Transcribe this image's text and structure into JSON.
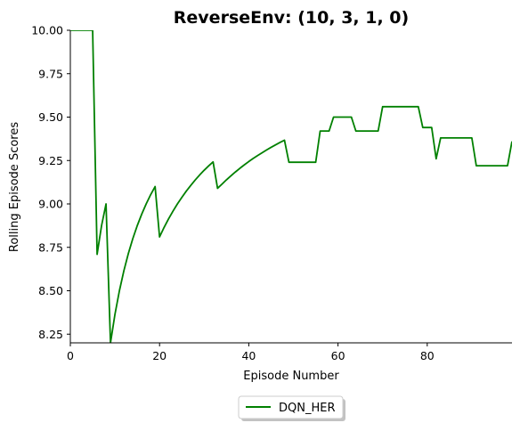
{
  "chart_data": {
    "type": "line",
    "title": "ReverseEnv: (10, 3, 1, 0)",
    "xlabel": "Episode Number",
    "ylabel": "Rolling Episode Scores",
    "xlim": [
      0,
      99
    ],
    "ylim": [
      8.2,
      10.0
    ],
    "x_ticks": [
      0,
      20,
      40,
      60,
      80
    ],
    "y_ticks": [
      8.25,
      8.5,
      8.75,
      9.0,
      9.25,
      9.5,
      9.75,
      10.0
    ],
    "x_tick_labels": [
      "0",
      "20",
      "40",
      "60",
      "80"
    ],
    "y_tick_labels": [
      "8.25",
      "8.50",
      "8.75",
      "9.00",
      "9.25",
      "9.50",
      "9.75",
      "10.00"
    ],
    "grid": false,
    "legend_position": "bottom-center",
    "series": [
      {
        "name": "DQN_HER",
        "color": "#008000",
        "x": [
          0,
          1,
          2,
          3,
          4,
          5,
          6,
          7,
          8,
          9,
          10,
          11,
          12,
          13,
          14,
          15,
          16,
          17,
          18,
          19,
          20,
          21,
          22,
          23,
          24,
          25,
          26,
          27,
          28,
          29,
          30,
          31,
          32,
          33,
          34,
          35,
          36,
          37,
          38,
          39,
          40,
          41,
          42,
          43,
          44,
          45,
          46,
          47,
          48,
          49,
          50,
          51,
          52,
          53,
          54,
          55,
          56,
          57,
          58,
          59,
          60,
          61,
          62,
          63,
          64,
          65,
          66,
          67,
          68,
          69,
          70,
          71,
          72,
          73,
          74,
          75,
          76,
          77,
          78,
          79,
          80,
          81,
          82,
          83,
          84,
          85,
          86,
          87,
          88,
          89,
          90,
          91,
          92,
          93,
          94,
          95,
          96,
          97,
          98,
          99
        ],
        "y": [
          10.0,
          10.0,
          10.0,
          10.0,
          10.0,
          10.0,
          8.71,
          8.875,
          9.0,
          8.2,
          8.364,
          8.5,
          8.615,
          8.714,
          8.8,
          8.875,
          8.941,
          9.0,
          9.053,
          9.1,
          8.81,
          8.864,
          8.913,
          8.958,
          9.0,
          9.038,
          9.074,
          9.107,
          9.138,
          9.167,
          9.194,
          9.219,
          9.242,
          9.09,
          9.114,
          9.139,
          9.162,
          9.184,
          9.205,
          9.225,
          9.244,
          9.262,
          9.279,
          9.295,
          9.311,
          9.326,
          9.34,
          9.354,
          9.367,
          9.24,
          9.24,
          9.24,
          9.24,
          9.24,
          9.24,
          9.24,
          9.42,
          9.42,
          9.42,
          9.5,
          9.5,
          9.5,
          9.5,
          9.5,
          9.42,
          9.42,
          9.42,
          9.42,
          9.42,
          9.42,
          9.56,
          9.56,
          9.56,
          9.56,
          9.56,
          9.56,
          9.56,
          9.56,
          9.56,
          9.44,
          9.44,
          9.44,
          9.26,
          9.38,
          9.38,
          9.38,
          9.38,
          9.38,
          9.38,
          9.38,
          9.38,
          9.22,
          9.22,
          9.22,
          9.22,
          9.22,
          9.22,
          9.22,
          9.22,
          9.36
        ]
      }
    ]
  }
}
